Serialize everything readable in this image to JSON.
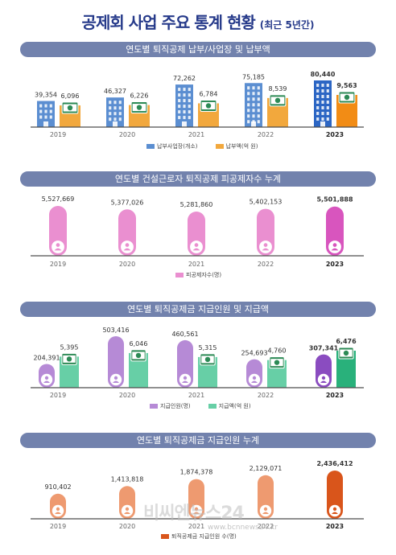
{
  "title": "공제회 사업 주요 통계 현황",
  "subtitle": "(최근 5년간)",
  "watermark": "비씨엔뉴스24",
  "watermark_url": "www.bcnnews24.kr",
  "colors": {
    "header_bar": "#7282ad",
    "title": "#263a8a",
    "building": "#5b8ed1",
    "building_2023": "#2c66c4",
    "money": "#f2a83d",
    "money_2023": "#f28c15",
    "pink": "#ea8fd0",
    "pink_2023": "#d855be",
    "purple": "#b68ad6",
    "purple_2023": "#8a4cc0",
    "green": "#67cfa6",
    "green_2023": "#29b17b",
    "orange": "#ee9a70",
    "orange_2023": "#d9551b"
  },
  "chart_data": [
    {
      "type": "bar",
      "title": "연도별 퇴직공제 납부/사업장 및 납부액",
      "categories": [
        "2019",
        "2020",
        "2021",
        "2022",
        "2023"
      ],
      "series": [
        {
          "name": "납부사업장(개소)",
          "values": [
            39354,
            46327,
            72262,
            75185,
            80440
          ],
          "labels": [
            "39,354",
            "46,327",
            "72,262",
            "75,185",
            "80,440"
          ],
          "icon": "building-icon"
        },
        {
          "name": "납부액(억 원)",
          "values": [
            6096,
            6226,
            6784,
            8539,
            9563
          ],
          "labels": [
            "6,096",
            "6,226",
            "6,784",
            "8,539",
            "9,563"
          ],
          "icon": "money-icon"
        }
      ]
    },
    {
      "type": "bar",
      "title": "연도별 건설근로자 퇴직공제 피공제자수 누계",
      "categories": [
        "2019",
        "2020",
        "2021",
        "2022",
        "2023"
      ],
      "series": [
        {
          "name": "피공제자수(명)",
          "values": [
            5527669,
            5377026,
            5281860,
            5402153,
            5501888
          ],
          "labels": [
            "5,527,669",
            "5,377,026",
            "5,281,860",
            "5,402,153",
            "5,501,888"
          ],
          "icon": "person-icon"
        }
      ]
    },
    {
      "type": "bar",
      "title": "연도별 퇴직공제금 지급인원 및 지급액",
      "categories": [
        "2019",
        "2020",
        "2021",
        "2022",
        "2023"
      ],
      "series": [
        {
          "name": "지급인원(명)",
          "values": [
            204391,
            503416,
            460561,
            254693,
            307341
          ],
          "labels": [
            "204,391",
            "503,416",
            "460,561",
            "254,693",
            "307,341"
          ],
          "icon": "person-icon"
        },
        {
          "name": "지급액(억 원)",
          "values": [
            5395,
            6046,
            5315,
            4760,
            6476
          ],
          "labels": [
            "5,395",
            "6,046",
            "5,315",
            "4,760",
            "6,476"
          ],
          "icon": "money-icon"
        }
      ]
    },
    {
      "type": "bar",
      "title": "연도별 퇴직공제금 지급인원 누계",
      "categories": [
        "2019",
        "2020",
        "2021",
        "2022",
        "2023"
      ],
      "series": [
        {
          "name": "퇴직공제금 지급인원 수(명)",
          "values": [
            910402,
            1413818,
            1874378,
            2129071,
            2436412
          ],
          "labels": [
            "910,402",
            "1,413,818",
            "1,874,378",
            "2,129,071",
            "2,436,412"
          ],
          "icon": "person-icon"
        }
      ]
    }
  ]
}
